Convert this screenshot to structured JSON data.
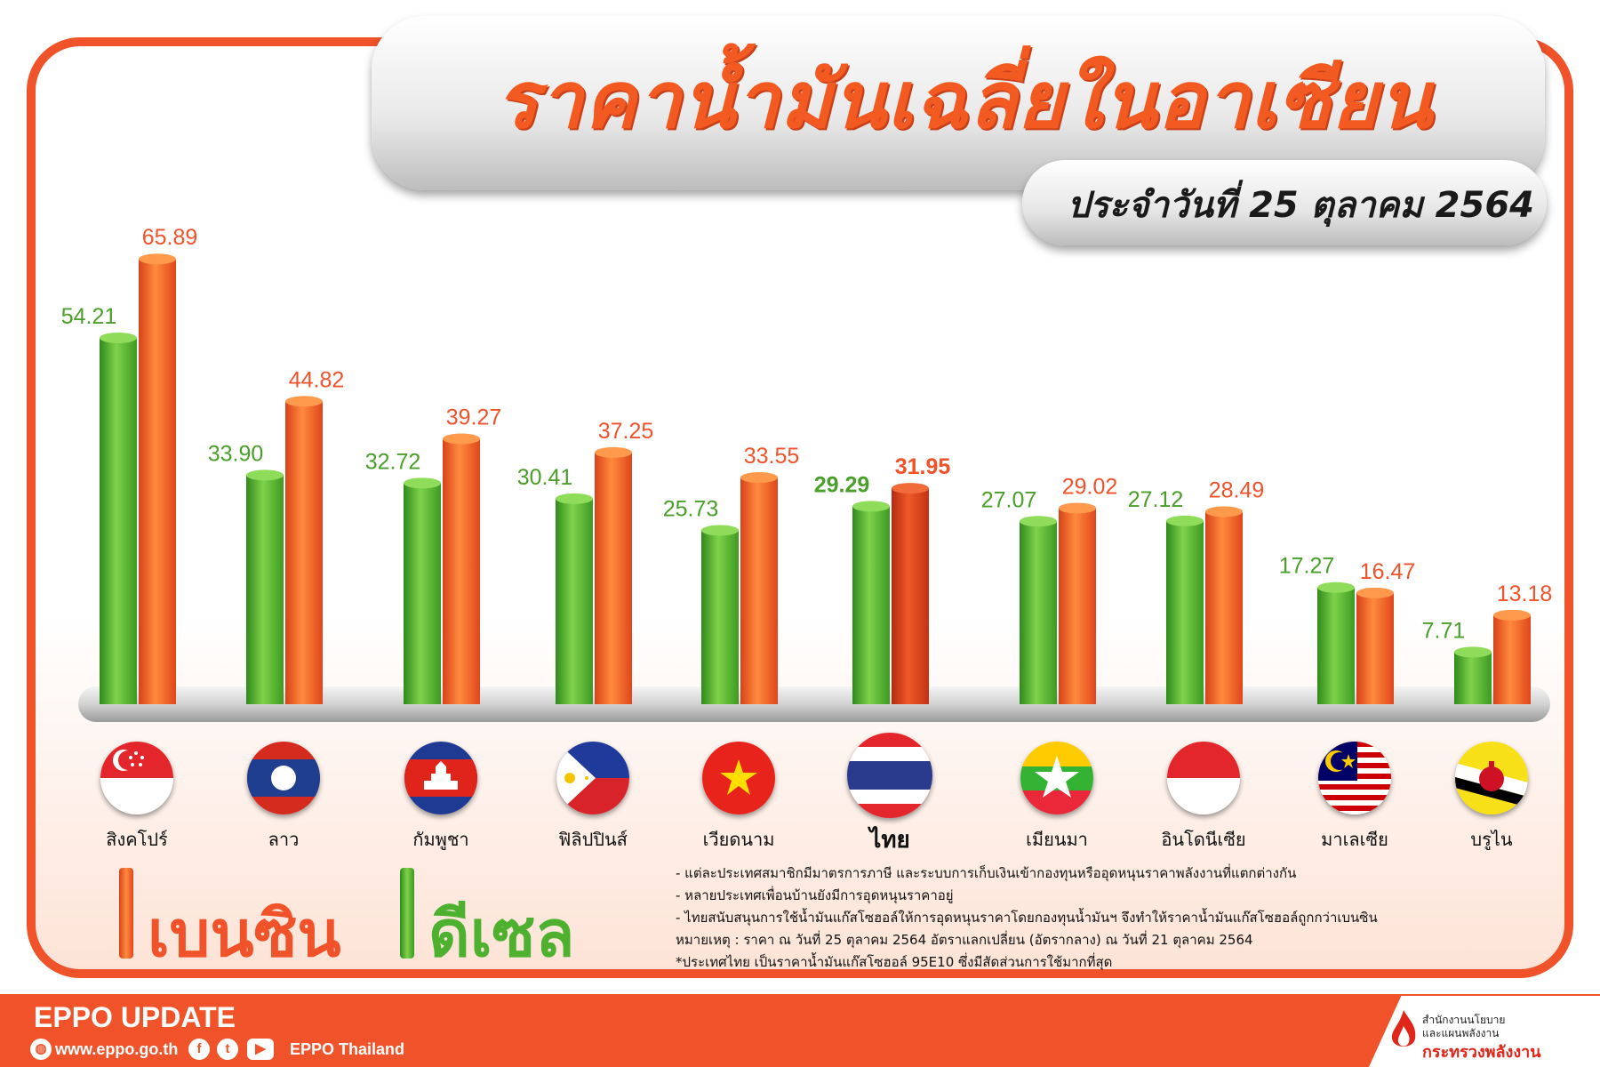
{
  "title": "ราคาน้ำมันเฉลี่ยในอาเซียน",
  "subtitle": "ประจำวันที่ 25 ตุลาคม 2564",
  "colors": {
    "benzine": "#f0522a",
    "diesel": "#4db02f",
    "accent": "#f0522a",
    "thailand_label": "#e0261b"
  },
  "chart_data": {
    "type": "bar",
    "categories": [
      "สิงคโปร์",
      "ลาว",
      "กัมพูชา",
      "ฟิลิปปินส์",
      "เวียดนาม",
      "ไทย",
      "เมียนมา",
      "อินโดนีเซีย",
      "มาเลเซีย",
      "บรูไน"
    ],
    "series": [
      {
        "name": "ดีเซล",
        "color": "#4db02f",
        "values": [
          54.21,
          33.9,
          32.72,
          30.41,
          25.73,
          29.29,
          27.07,
          27.12,
          17.27,
          7.71
        ],
        "labels": [
          "54.21",
          "33.90",
          "32.72",
          "30.41",
          "25.73",
          "29.29",
          "27.07",
          "27.12",
          "17.27",
          "7.71"
        ]
      },
      {
        "name": "เบนซิน",
        "color": "#f0522a",
        "values": [
          65.89,
          44.82,
          39.27,
          37.25,
          33.55,
          31.95,
          29.02,
          28.49,
          16.47,
          13.18
        ],
        "labels": [
          "65.89",
          "44.82",
          "39.27",
          "37.25",
          "33.55",
          "31.95",
          "29.02",
          "28.49",
          "16.47",
          "13.18"
        ]
      }
    ],
    "ylim": [
      0,
      70
    ],
    "legend": "bottom-left",
    "grid": false
  },
  "legend": {
    "benzine": "เบนซิน",
    "diesel": "ดีเซล"
  },
  "flags": [
    "singapore-flag-icon",
    "laos-flag-icon",
    "cambodia-flag-icon",
    "philippines-flag-icon",
    "vietnam-flag-icon",
    "thailand-flag-icon",
    "myanmar-flag-icon",
    "indonesia-flag-icon",
    "malaysia-flag-icon",
    "brunei-flag-icon"
  ],
  "notes": [
    "- แต่ละประเทศสมาชิกมีมาตรการภาษี และระบบการเก็บเงินเข้ากองทุนหรืออุดหนุนราคาพลังงานที่แตกต่างกัน",
    "- หลายประเทศเพื่อนบ้านยังมีการอุดหนุนราคาอยู่",
    "- ไทยสนับสนุนการใช้น้ำมันแก๊สโซฮอล์ให้การอุดหนุนราคาโดยกองทุนน้ำมันฯ จึงทำให้ราคาน้ำมันแก๊สโซฮอล์ถูกกว่าเบนซิน",
    "หมายเหตุ : ราคา ณ วันที่ 25 ตุลาคม 2564 อัตราแลกเปลี่ยน (อัตรากลาง) ณ วันที่ 21 ตุลาคม 2564",
    "*ประเทศไทย เป็นราคาน้ำมันแก๊สโซฮอล์ 95E10 ซึ่งมีสัดส่วนการใช้มากที่สุด"
  ],
  "footer": {
    "title": "EPPO UPDATE",
    "website": "www.eppo.go.th",
    "social": "EPPO Thailand",
    "org_line1": "สำนักงานนโยบาย",
    "org_line2": "และแผนพลังงาน",
    "org_line3": "กระทรวงพลังงาน"
  }
}
